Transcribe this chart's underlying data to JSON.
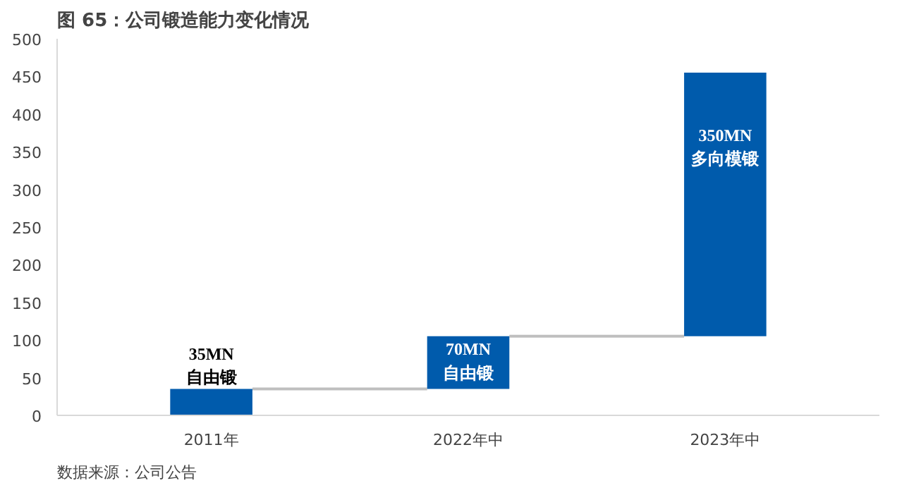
{
  "chart_data": {
    "type": "bar",
    "title": "图 65：公司锻造能力变化情况",
    "categories": [
      "2011年",
      "2022年中",
      "2023年中"
    ],
    "values": [
      35,
      70,
      350
    ],
    "base": [
      0,
      35,
      105
    ],
    "color": "#005bac",
    "value_labels": [
      "35MN\n自由锻",
      "70MN\n自由锻",
      "350MN\n多向模锻"
    ],
    "ylim": [
      0,
      500
    ],
    "yticks": [
      0,
      50,
      100,
      150,
      200,
      250,
      300,
      350,
      400,
      450,
      500
    ],
    "grid": false,
    "annotations": [
      "数据来源：公司公告"
    ]
  }
}
